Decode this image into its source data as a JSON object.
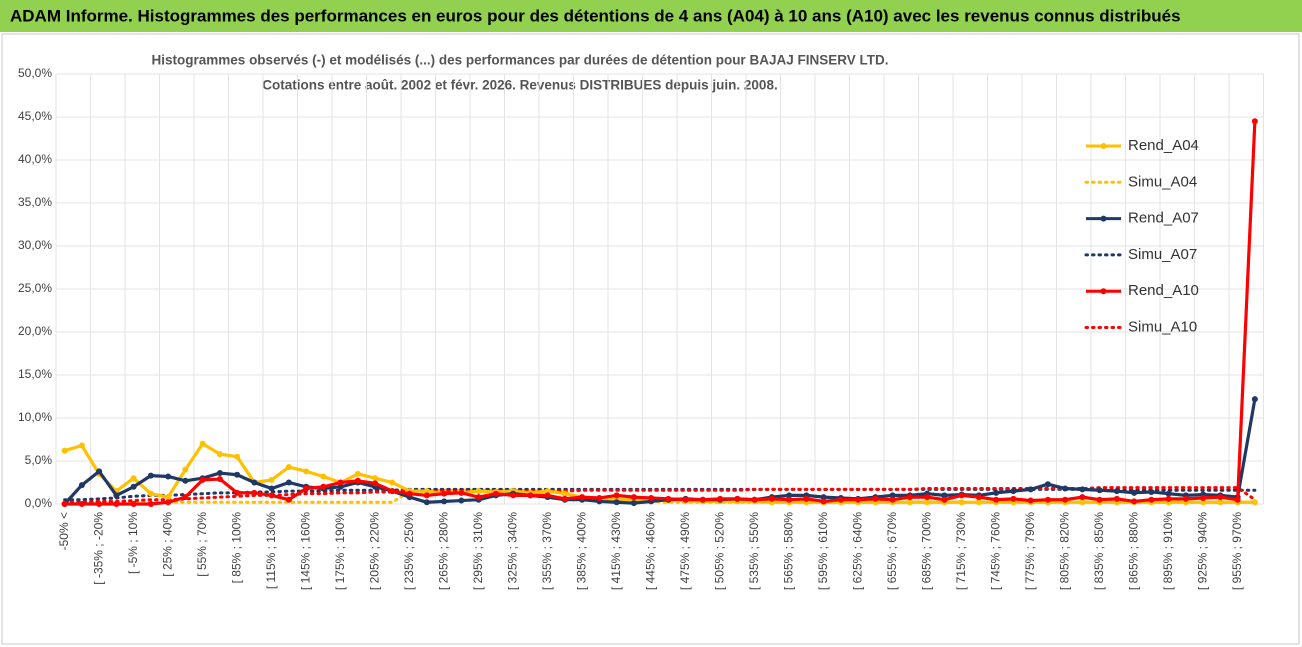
{
  "chart_data": {
    "type": "line",
    "title": "ADAM Informe. Histogrammes des performances en euros pour des détentions de 4 ans (A04) à 10 ans (A10) avec les revenus connus distribués",
    "subtitle": [
      "Histogrammes observés (-) et modélisés (...) des performances par durées de détention pour BAJAJ FINSERV LTD.",
      "Cotations entre août. 2002 et févr. 2026. Revenus DISTRIBUES depuis juin. 2008."
    ],
    "categories": [
      "-50% <",
      null,
      "[ -35% ; -20%",
      null,
      "[ -5% ; 10%",
      null,
      "[ 25% ; 40%",
      null,
      "[ 55% ; 70%",
      null,
      "[ 85% ; 100%",
      null,
      "[ 115% ; 130%",
      null,
      "[ 145% ; 160%",
      null,
      "[ 175% ; 190%",
      null,
      "[ 205% ; 220%",
      null,
      "[ 235% ; 250%",
      null,
      "[ 265% ; 280%",
      null,
      "[ 295% ; 310%",
      null,
      "[ 325% ; 340%",
      null,
      "[ 355% ; 370%",
      null,
      "[ 385% ; 400%",
      null,
      "[ 415% ; 430%",
      null,
      "[ 445% ; 460%",
      null,
      "[ 475% ; 490%",
      null,
      "[ 505% ; 520%",
      null,
      "[ 535% ; 550%",
      null,
      "[ 565% ; 580%",
      null,
      "[ 595% ; 610%",
      null,
      "[ 625% ; 640%",
      null,
      "[ 655% ; 670%",
      null,
      "[ 685% ; 700%",
      null,
      "[ 715% ; 730%",
      null,
      "[ 745% ; 760%",
      null,
      "[ 775% ; 790%",
      null,
      "[ 805% ; 820%",
      null,
      "[ 835% ; 850%",
      null,
      "[ 865% ; 880%",
      null,
      "[ 895% ; 910%",
      null,
      "[ 925% ; 940%",
      null,
      "[ 955% ; 970%",
      null
    ],
    "series": [
      {
        "name": "Rend_A04",
        "color": "#ffc000",
        "dashed": false,
        "values": [
          6.2,
          6.8,
          3.5,
          1.5,
          3.0,
          1.2,
          0.8,
          4.0,
          7.0,
          5.8,
          5.5,
          2.5,
          2.8,
          4.3,
          3.8,
          3.2,
          2.5,
          3.5,
          3.0,
          2.5,
          1.5,
          1.5,
          1.2,
          1.3,
          1.5,
          1.4,
          1.5,
          1.3,
          1.5,
          1.2,
          0.8,
          0.6,
          0.5,
          0.5,
          0.5,
          0.4,
          0.4,
          0.3,
          0.3,
          0.3,
          0.3,
          0.2,
          0.2,
          0.2,
          0.2,
          0.2,
          0.2,
          0.2,
          0.2,
          0.2,
          0.2,
          0.2,
          0.2,
          0.2,
          0.2,
          0.2,
          0.2,
          0.2,
          0.2,
          0.2,
          0.2,
          0.2,
          0.2,
          0.2,
          0.2,
          0.2,
          0.2,
          0.2,
          0.2,
          0.2
        ]
      },
      {
        "name": "Simu_A04",
        "color": "#ffc000",
        "dashed": true,
        "values": [
          0.2,
          0.2,
          0.2,
          0.2,
          0.2,
          0.2,
          0.2,
          0.2,
          0.2,
          0.2,
          0.2,
          0.2,
          0.2,
          0.2,
          0.2,
          0.2,
          0.2,
          0.2,
          0.2,
          0.2,
          1.5,
          1.5,
          1.6,
          1.6,
          1.6,
          1.6,
          1.6,
          1.5,
          1.5,
          1.4,
          0.5,
          0.4,
          0.3,
          0.3,
          0.3,
          0.2,
          0.2,
          0.2,
          0.2,
          0.2,
          0.2,
          0.2,
          0.2,
          0.2,
          0.2,
          0.2,
          0.2,
          0.2,
          0.2,
          0.2,
          0.2,
          0.2,
          0.2,
          0.2,
          0.2,
          0.2,
          0.2,
          0.2,
          0.2,
          0.2,
          0.2,
          0.2,
          0.2,
          0.2,
          0.2,
          0.2,
          0.2,
          0.2,
          0.2,
          0.2
        ]
      },
      {
        "name": "Rend_A07",
        "color": "#1f3864",
        "dashed": false,
        "values": [
          0,
          2.2,
          3.8,
          1.0,
          2.0,
          3.3,
          3.2,
          2.7,
          3.0,
          3.6,
          3.4,
          2.5,
          1.8,
          2.5,
          2.0,
          1.8,
          2.0,
          2.5,
          2.0,
          1.5,
          0.8,
          0.2,
          0.3,
          0.4,
          0.5,
          1.0,
          1.2,
          1.0,
          0.8,
          0.5,
          0.5,
          0.3,
          0.2,
          0.1,
          0.3,
          0.5,
          0.6,
          0.5,
          0.5,
          0.6,
          0.5,
          0.8,
          1.0,
          1.0,
          0.8,
          0.7,
          0.6,
          0.8,
          1.0,
          1.0,
          1.2,
          1.0,
          1.1,
          1.0,
          1.3,
          1.5,
          1.7,
          2.3,
          1.8,
          1.7,
          1.6,
          1.5,
          1.3,
          1.4,
          1.2,
          1.0,
          1.1,
          1.0,
          0.8,
          12.2
        ]
      },
      {
        "name": "Simu_A07",
        "color": "#1f3864",
        "dashed": true,
        "values": [
          0.5,
          0.5,
          0.6,
          0.7,
          0.9,
          1.0,
          1.0,
          1.1,
          1.2,
          1.3,
          1.3,
          1.4,
          1.4,
          1.5,
          1.5,
          1.5,
          1.6,
          1.6,
          1.6,
          1.6,
          1.7,
          1.7,
          1.7,
          1.7,
          1.7,
          1.7,
          1.7,
          1.7,
          1.7,
          1.7,
          1.7,
          1.7,
          1.7,
          1.7,
          1.7,
          1.7,
          1.7,
          1.7,
          1.7,
          1.7,
          1.7,
          1.7,
          1.7,
          1.7,
          1.7,
          1.7,
          1.7,
          1.7,
          1.7,
          1.7,
          1.7,
          1.7,
          1.7,
          1.7,
          1.7,
          1.7,
          1.7,
          1.7,
          1.7,
          1.7,
          1.6,
          1.6,
          1.6,
          1.6,
          1.6,
          1.6,
          1.6,
          1.6,
          1.6,
          1.6
        ]
      },
      {
        "name": "Rend_A10",
        "color": "#ff0000",
        "dashed": false,
        "values": [
          0,
          0,
          0,
          0,
          0,
          0,
          0.2,
          0.8,
          2.8,
          2.9,
          1.3,
          1.3,
          1.0,
          0.5,
          1.8,
          2.0,
          2.5,
          2.7,
          2.4,
          1.5,
          1.2,
          1.0,
          1.2,
          1.3,
          0.8,
          1.2,
          1.0,
          1.0,
          1.0,
          0.6,
          0.8,
          0.7,
          1.0,
          0.8,
          0.7,
          0.6,
          0.5,
          0.5,
          0.6,
          0.6,
          0.5,
          0.6,
          0.5,
          0.6,
          0.3,
          0.5,
          0.5,
          0.6,
          0.5,
          0.8,
          0.8,
          0.5,
          1.0,
          0.8,
          0.5,
          0.6,
          0.4,
          0.5,
          0.5,
          0.8,
          0.5,
          0.6,
          0.3,
          0.5,
          0.6,
          0.6,
          0.7,
          0.8,
          0.5,
          44.5
        ]
      },
      {
        "name": "Simu_A10",
        "color": "#ff0000",
        "dashed": true,
        "values": [
          0.2,
          0.2,
          0.3,
          0.3,
          0.4,
          0.5,
          0.5,
          0.6,
          0.7,
          0.8,
          0.9,
          1.0,
          1.0,
          1.1,
          1.2,
          1.2,
          1.3,
          1.3,
          1.4,
          1.4,
          1.5,
          1.5,
          1.5,
          1.5,
          1.5,
          1.5,
          1.5,
          1.5,
          1.5,
          1.5,
          1.6,
          1.6,
          1.6,
          1.6,
          1.6,
          1.6,
          1.6,
          1.6,
          1.6,
          1.6,
          1.7,
          1.7,
          1.7,
          1.7,
          1.7,
          1.7,
          1.7,
          1.7,
          1.7,
          1.7,
          1.8,
          1.8,
          1.8,
          1.8,
          1.8,
          1.8,
          1.8,
          1.8,
          1.8,
          1.8,
          1.9,
          1.9,
          1.9,
          1.9,
          1.9,
          1.9,
          1.9,
          1.9,
          1.9,
          0.5
        ]
      }
    ],
    "ylim": [
      0,
      50
    ],
    "yticks": [
      {
        "value": 0,
        "label": "0,0%"
      },
      {
        "value": 5,
        "label": "5,0%"
      },
      {
        "value": 10,
        "label": "10,0%"
      },
      {
        "value": 15,
        "label": "15,0%"
      },
      {
        "value": 20,
        "label": "20,0%"
      },
      {
        "value": 25,
        "label": "25,0%"
      },
      {
        "value": 30,
        "label": "30,0%"
      },
      {
        "value": 35,
        "label": "35,0%"
      },
      {
        "value": 40,
        "label": "40,0%"
      },
      {
        "value": 45,
        "label": "45,0%"
      },
      {
        "value": 50,
        "label": "50,0%"
      }
    ],
    "grid": true,
    "legend": "right"
  }
}
